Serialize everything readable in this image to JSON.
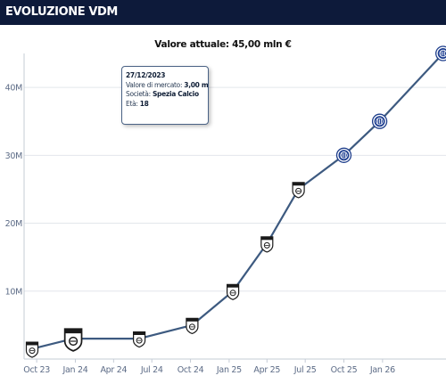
{
  "header": {
    "title": "EVOLUZIONE VDM"
  },
  "chart_data": {
    "type": "line",
    "title": "Valore attuale: 45,00 mln €",
    "xlabel": "",
    "ylabel": "",
    "ylim": [
      0,
      45
    ],
    "xlim": [
      "2023-09-01",
      "2026-06-01"
    ],
    "x_ticks": [
      {
        "label": "Oct 23",
        "date": "2023-10-01"
      },
      {
        "label": "Jan 24",
        "date": "2024-01-01"
      },
      {
        "label": "Apr 24",
        "date": "2024-04-01"
      },
      {
        "label": "Jul 24",
        "date": "2024-07-01"
      },
      {
        "label": "Oct 24",
        "date": "2024-10-01"
      },
      {
        "label": "Jan 25",
        "date": "2025-01-01"
      },
      {
        "label": "Apr 25",
        "date": "2025-04-01"
      },
      {
        "label": "Jul 25",
        "date": "2025-07-01"
      },
      {
        "label": "Oct 25",
        "date": "2025-10-01"
      },
      {
        "label": "Jan 26",
        "date": "2026-01-01"
      }
    ],
    "y_ticks": [
      {
        "label": "10M",
        "value": 10
      },
      {
        "label": "20M",
        "value": 20
      },
      {
        "label": "30M",
        "value": 30
      },
      {
        "label": "40M",
        "value": 40
      }
    ],
    "grid": "horizontal",
    "line_color": "#3d5a80",
    "series": [
      {
        "values": [
          {
            "date": "2023-09-20",
            "value": 1.5,
            "club": "spezia"
          },
          {
            "date": "2023-12-27",
            "value": 3.0,
            "club": "spezia"
          },
          {
            "date": "2024-06-01",
            "value": 3.0,
            "club": "spezia"
          },
          {
            "date": "2024-10-05",
            "value": 5.0,
            "club": "spezia"
          },
          {
            "date": "2025-01-10",
            "value": 10.0,
            "club": "spezia"
          },
          {
            "date": "2025-04-01",
            "value": 17.0,
            "club": "spezia"
          },
          {
            "date": "2025-06-15",
            "value": 25.0,
            "club": "spezia"
          },
          {
            "date": "2025-10-01",
            "value": 30.0,
            "club": "inter"
          },
          {
            "date": "2025-12-25",
            "value": 35.0,
            "club": "inter"
          },
          {
            "date": "2026-05-25",
            "value": 45.0,
            "club": "inter"
          }
        ]
      }
    ],
    "highlighted_index": 1,
    "tooltip": {
      "date": "27/12/2023",
      "market_value_label": "Valore di mercato:",
      "market_value": "3,00 mln €",
      "club_label": "Società:",
      "club": "Spezia Calcio",
      "age_label": "Età:",
      "age": "18"
    }
  }
}
